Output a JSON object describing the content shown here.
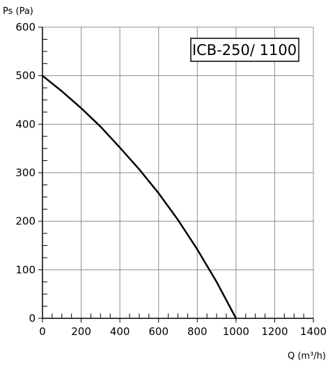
{
  "chart_data": {
    "type": "line",
    "title": "ICB-250/ 1100",
    "xlabel": "Q (m³/h)",
    "ylabel": "Ps (Pa)",
    "xlim": [
      0,
      1400
    ],
    "ylim": [
      0,
      600
    ],
    "grid": true,
    "x_ticks": [
      0,
      200,
      400,
      600,
      800,
      1000,
      1200,
      1400
    ],
    "y_ticks": [
      0,
      100,
      200,
      300,
      400,
      500,
      600
    ],
    "series": [
      {
        "x": [
          0,
          100,
          200,
          300,
          400,
          500,
          600,
          700,
          800,
          900,
          1000
        ],
        "y": [
          500,
          468,
          433,
          395,
          352,
          307,
          258,
          203,
          142,
          75,
          0
        ],
        "color": "#000000"
      }
    ],
    "title_position": "top-right"
  }
}
